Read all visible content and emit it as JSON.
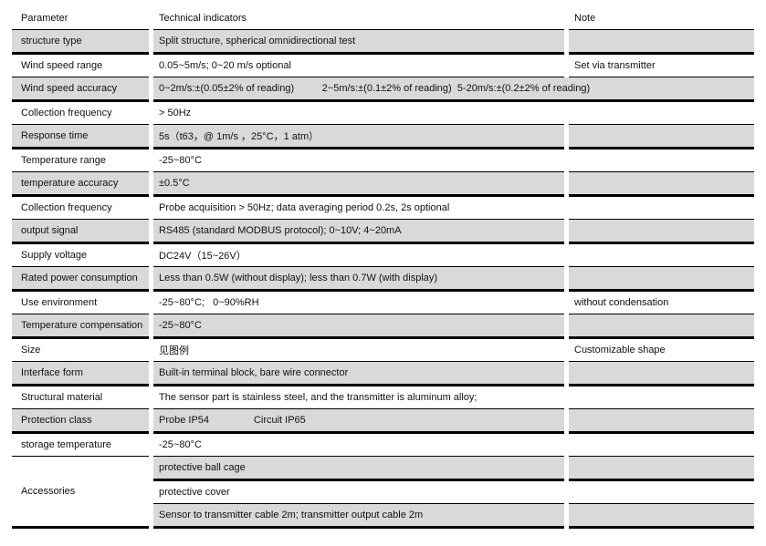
{
  "table": {
    "headers": {
      "parameter": "Parameter",
      "technical": "Technical indicators",
      "note": "Note"
    },
    "rows": [
      {
        "parameter": "structure type",
        "technical": "Split structure, spherical omnidirectional test",
        "note": "",
        "shaded": true,
        "span_note": false
      },
      {
        "parameter": "Wind speed range",
        "technical": "0.05~5m/s; 0~20 m/s optional",
        "note": "Set via transmitter",
        "shaded": false,
        "span_note": false
      },
      {
        "parameter": "Wind speed accuracy",
        "technical": "0~2m/s:±(0.05±2% of reading)          2~5m/s:±(0.1±2% of reading)  5-20m/s:±(0.2±2% of reading)",
        "note": "",
        "shaded": true,
        "span_note": true
      },
      {
        "parameter": "Collection frequency",
        "technical": "> 50Hz",
        "note": "",
        "shaded": false,
        "span_note": false
      },
      {
        "parameter": "Response time",
        "technical": "5s（t63，@ 1m/s ，25°C，1 atm）",
        "note": "",
        "shaded": true,
        "span_note": false
      },
      {
        "parameter": "Temperature range",
        "technical": "-25~80°C",
        "note": "",
        "shaded": false,
        "span_note": false
      },
      {
        "parameter": "temperature accuracy",
        "technical": "±0.5°C",
        "note": "",
        "shaded": true,
        "span_note": false
      },
      {
        "parameter": "Collection frequency",
        "technical": "Probe acquisition > 50Hz; data averaging period 0.2s, 2s optional",
        "note": "",
        "shaded": false,
        "span_note": false
      },
      {
        "parameter": "output signal",
        "technical": "RS485 (standard MODBUS protocol); 0~10V; 4~20mA",
        "note": "",
        "shaded": true,
        "span_note": false
      },
      {
        "parameter": "Supply voltage",
        "technical": "DC24V（15~26V）",
        "note": "",
        "shaded": false,
        "span_note": false
      },
      {
        "parameter": "Rated power consumption",
        "technical": "Less than 0.5W (without display); less than 0.7W (with display)",
        "note": "",
        "shaded": true,
        "span_note": false
      },
      {
        "parameter": "Use environment",
        "technical": "-25~80°C;   0~90%RH",
        "note": "without condensation",
        "shaded": false,
        "span_note": false
      },
      {
        "parameter": "Temperature compensation",
        "technical": "-25~80°C",
        "note": "",
        "shaded": true,
        "span_note": false
      },
      {
        "parameter": "Size",
        "technical": "见图例",
        "note": "Customizable shape",
        "shaded": false,
        "span_note": false
      },
      {
        "parameter": "Interface form",
        "technical": "Built-in terminal block, bare wire connector",
        "note": "",
        "shaded": true,
        "span_note": false
      },
      {
        "parameter": "Structural material",
        "technical": "The sensor part is stainless steel, and the transmitter is aluminum alloy;",
        "note": "",
        "shaded": false,
        "span_note": false
      },
      {
        "parameter": "Protection class",
        "technical": "Probe IP54                Circuit IP65",
        "note": "",
        "shaded": true,
        "span_note": false
      },
      {
        "parameter": "storage temperature",
        "technical": "-25~80°C",
        "note": "",
        "shaded": false,
        "span_note": false
      }
    ],
    "accessories": {
      "parameter": "Accessories",
      "items": [
        {
          "technical": "protective ball cage",
          "note": "",
          "shaded": true
        },
        {
          "technical": "protective cover",
          "note": "",
          "shaded": false
        },
        {
          "technical": "Sensor to transmitter cable 2m; transmitter output cable 2m",
          "note": "",
          "shaded": true
        }
      ]
    }
  }
}
